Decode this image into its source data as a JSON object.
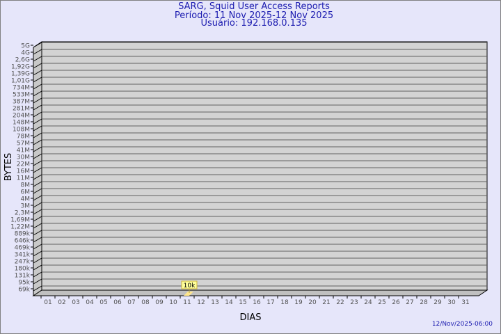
{
  "header": {
    "title": "SARG, Squid User Access Reports",
    "period": "Período: 11 Nov 2025-12 Nov 2025",
    "user": "Usuário: 192.168.0.135"
  },
  "footer": {
    "date": "12/Nov/2025-06:00"
  },
  "chart_data": {
    "type": "bar",
    "xlabel": "DIAS",
    "ylabel": "BYTES",
    "y_scale": "log",
    "y_tick_labels": [
      "5G",
      "4G",
      "2,6G",
      "1,92G",
      "1,39G",
      "1,01G",
      "734M",
      "533M",
      "387M",
      "281M",
      "204M",
      "148M",
      "108M",
      "78M",
      "57M",
      "41M",
      "30M",
      "22M",
      "16M",
      "11M",
      "8M",
      "6M",
      "4M",
      "3M",
      "2,3M",
      "1,69M",
      "1,22M",
      "889k",
      "646k",
      "469k",
      "341k",
      "247k",
      "180k",
      "131k",
      "95k",
      "69k"
    ],
    "categories": [
      "01",
      "02",
      "03",
      "04",
      "05",
      "06",
      "07",
      "08",
      "09",
      "10",
      "11",
      "12",
      "13",
      "14",
      "15",
      "16",
      "17",
      "18",
      "19",
      "20",
      "21",
      "22",
      "23",
      "24",
      "25",
      "26",
      "27",
      "28",
      "29",
      "30",
      "31"
    ],
    "values": [
      null,
      null,
      null,
      null,
      null,
      null,
      null,
      null,
      null,
      null,
      10000,
      null,
      null,
      null,
      null,
      null,
      null,
      null,
      null,
      null,
      null,
      null,
      null,
      null,
      null,
      null,
      null,
      null,
      null,
      null,
      null
    ],
    "data_labels": {
      "11": "10k"
    },
    "grid": true,
    "colors": {
      "plot": "#d3d3d3",
      "bar": "#ffe68c",
      "label_bg": "#ffff99",
      "text": "#1c1cb0",
      "axis_text": "#505050"
    }
  }
}
